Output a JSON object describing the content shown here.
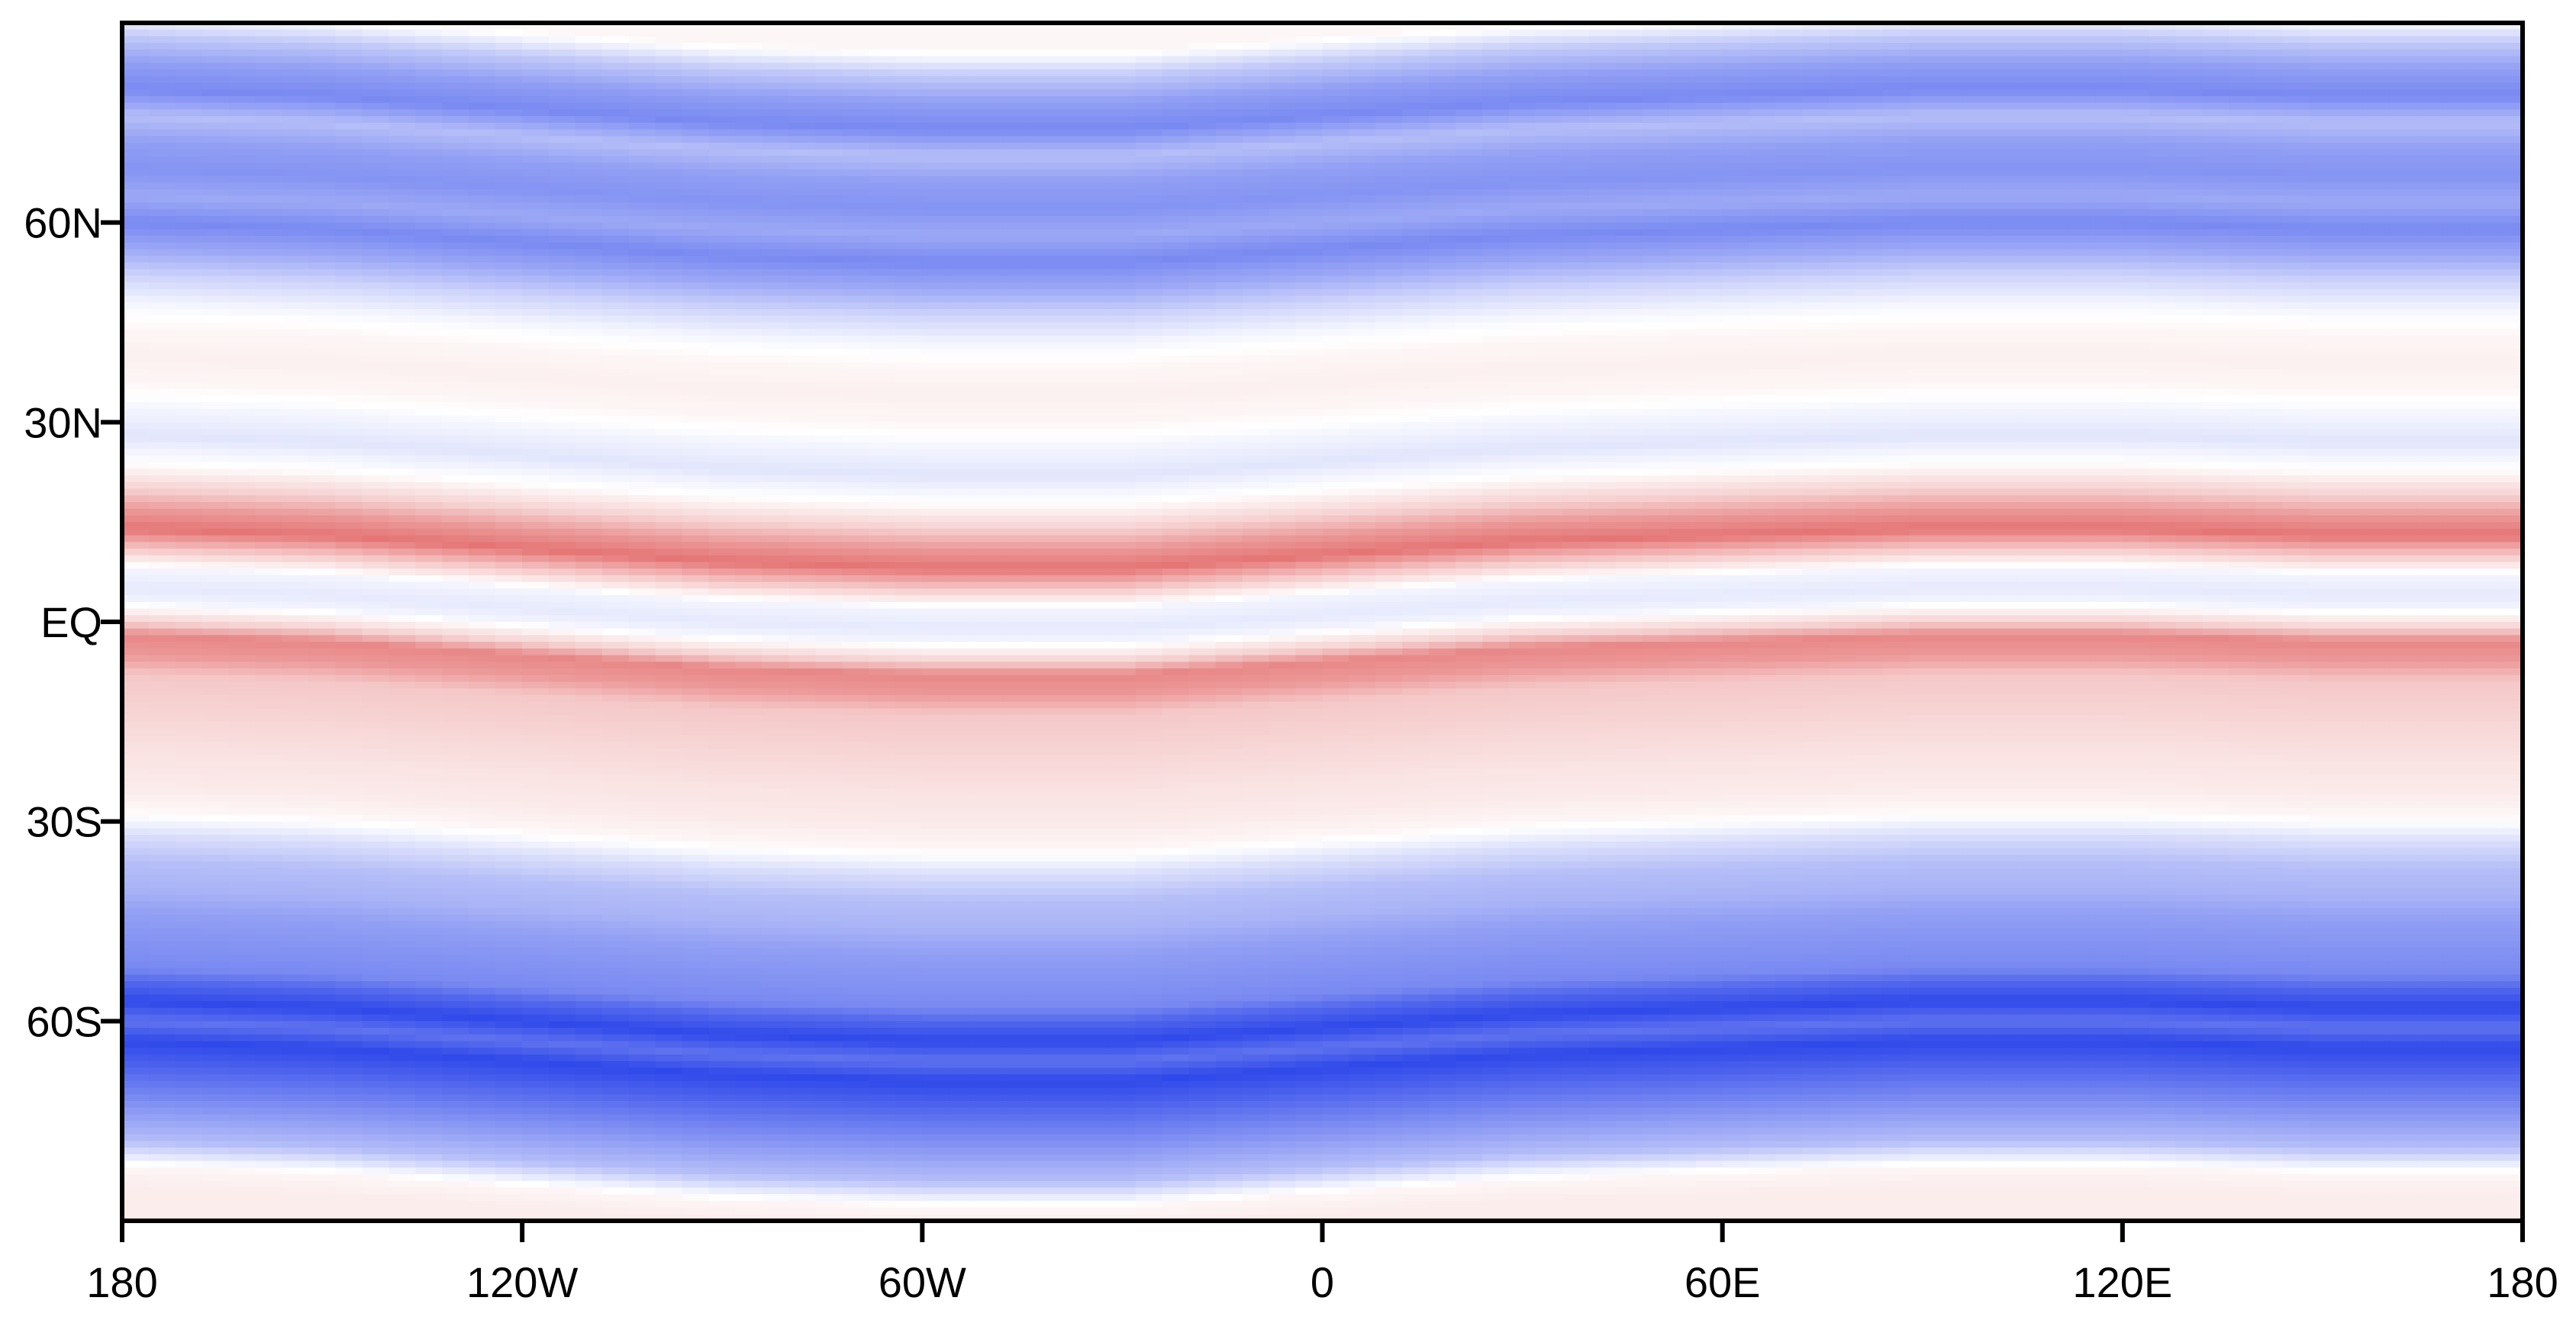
{
  "chart_data": {
    "type": "heatmap",
    "title": "",
    "xlabel": "",
    "ylabel": "",
    "x_range": [
      -180,
      180
    ],
    "y_range": [
      -90,
      90
    ],
    "grid": false,
    "legend": "none",
    "colormap": {
      "negative": "#0a28e6",
      "zero": "#ffffff",
      "positive": "#dc4646",
      "value_range": [
        -1,
        1
      ]
    },
    "x_ticks": [
      {
        "value": -180,
        "label": "180"
      },
      {
        "value": -120,
        "label": "120W"
      },
      {
        "value": -60,
        "label": "60W"
      },
      {
        "value": 0,
        "label": "0"
      },
      {
        "value": 60,
        "label": "60E"
      },
      {
        "value": 120,
        "label": "120E"
      },
      {
        "value": 180,
        "label": "180"
      }
    ],
    "y_ticks": [
      {
        "value": 60,
        "label": "60N"
      },
      {
        "value": 30,
        "label": "30N"
      },
      {
        "value": 0,
        "label": "EQ"
      },
      {
        "value": -30,
        "label": "30S"
      },
      {
        "value": -60,
        "label": "60S"
      }
    ],
    "zonal_profile": {
      "latitude": [
        88,
        84,
        80,
        76,
        72,
        68,
        64,
        60,
        56,
        52,
        48,
        44,
        40,
        36,
        32,
        28,
        24,
        20,
        16,
        13,
        10,
        7,
        4,
        1,
        -1,
        -4,
        -6,
        -9,
        -12,
        -16,
        -20,
        -24,
        -28,
        -32,
        -36,
        -40,
        -44,
        -48,
        -52,
        -56,
        -58,
        -61,
        -64,
        -67,
        -70,
        -74,
        -78,
        -82,
        -86,
        -89
      ],
      "value": [
        0.05,
        -0.25,
        -0.45,
        -0.55,
        -0.3,
        -0.45,
        -0.5,
        -0.4,
        -0.55,
        -0.4,
        -0.2,
        -0.05,
        0.05,
        0.08,
        0.05,
        -0.05,
        -0.12,
        0.0,
        0.25,
        0.55,
        0.75,
        0.3,
        -0.05,
        -0.1,
        -0.05,
        0.25,
        0.65,
        0.55,
        0.3,
        0.25,
        0.2,
        0.15,
        0.12,
        0.05,
        -0.15,
        -0.3,
        -0.35,
        -0.45,
        -0.5,
        -0.55,
        -0.7,
        -0.85,
        -0.65,
        -0.85,
        -0.75,
        -0.6,
        -0.45,
        -0.3,
        0.05,
        0.1
      ]
    },
    "meridional_wave": {
      "longitude": [
        -180,
        -150,
        -120,
        -90,
        -60,
        -30,
        0,
        30,
        60,
        90,
        120,
        150,
        180
      ],
      "latitude_shift": [
        4,
        3,
        1,
        -1,
        -2,
        -2,
        0,
        2,
        3,
        4,
        4,
        3,
        3
      ]
    }
  }
}
